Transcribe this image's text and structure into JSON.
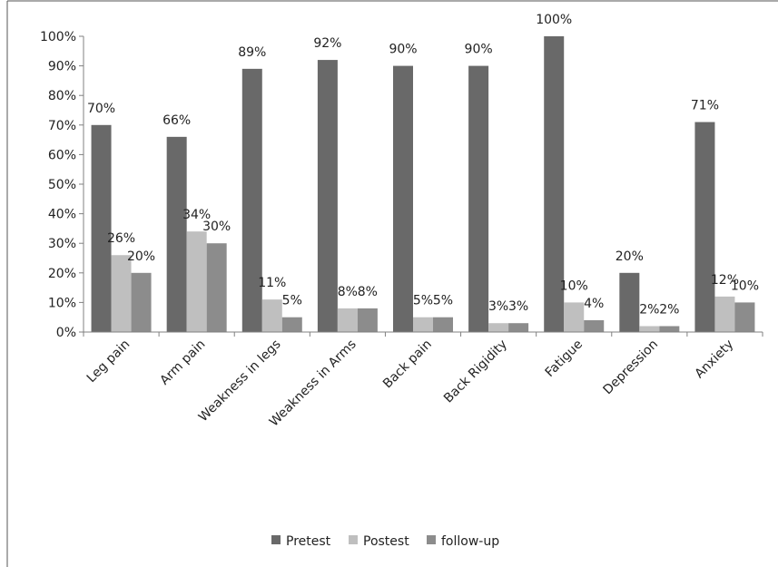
{
  "chart_data": {
    "type": "bar",
    "title": "",
    "xlabel": "",
    "ylabel": "",
    "ylim": [
      0,
      100
    ],
    "y_ticks": [
      "0%",
      "10%",
      "20%",
      "30%",
      "40%",
      "50%",
      "60%",
      "70%",
      "80%",
      "90%",
      "100%"
    ],
    "categories": [
      "Leg pain",
      "Arm pain",
      "Weakness in legs",
      "Weakness in Arms",
      "Back pain",
      "Back Rigidity",
      "Fatigue",
      "Depression",
      "Anxiety"
    ],
    "series": [
      {
        "name": "Pretest",
        "color": "#696969",
        "values": [
          70,
          66,
          89,
          92,
          90,
          90,
          100,
          20,
          71
        ],
        "labels": [
          "70%",
          "66%",
          "89%",
          "92%",
          "90%",
          "90%",
          "100%",
          "20%",
          "71%"
        ]
      },
      {
        "name": "Postest",
        "color": "#bfbfbf",
        "values": [
          26,
          34,
          11,
          8,
          5,
          3,
          10,
          2,
          12
        ],
        "labels": [
          "26%",
          "34%",
          "11%",
          "8%",
          "5%",
          "3%",
          "10%",
          "2%",
          "12%"
        ]
      },
      {
        "name": "follow-up",
        "color": "#8c8c8c",
        "values": [
          20,
          30,
          5,
          8,
          5,
          3,
          4,
          2,
          10
        ],
        "labels": [
          "20%",
          "30%",
          "5%",
          "8%",
          "5%",
          "3%",
          "4%",
          "2%",
          "10%"
        ]
      }
    ],
    "grid": false,
    "legend_position": "bottom"
  }
}
